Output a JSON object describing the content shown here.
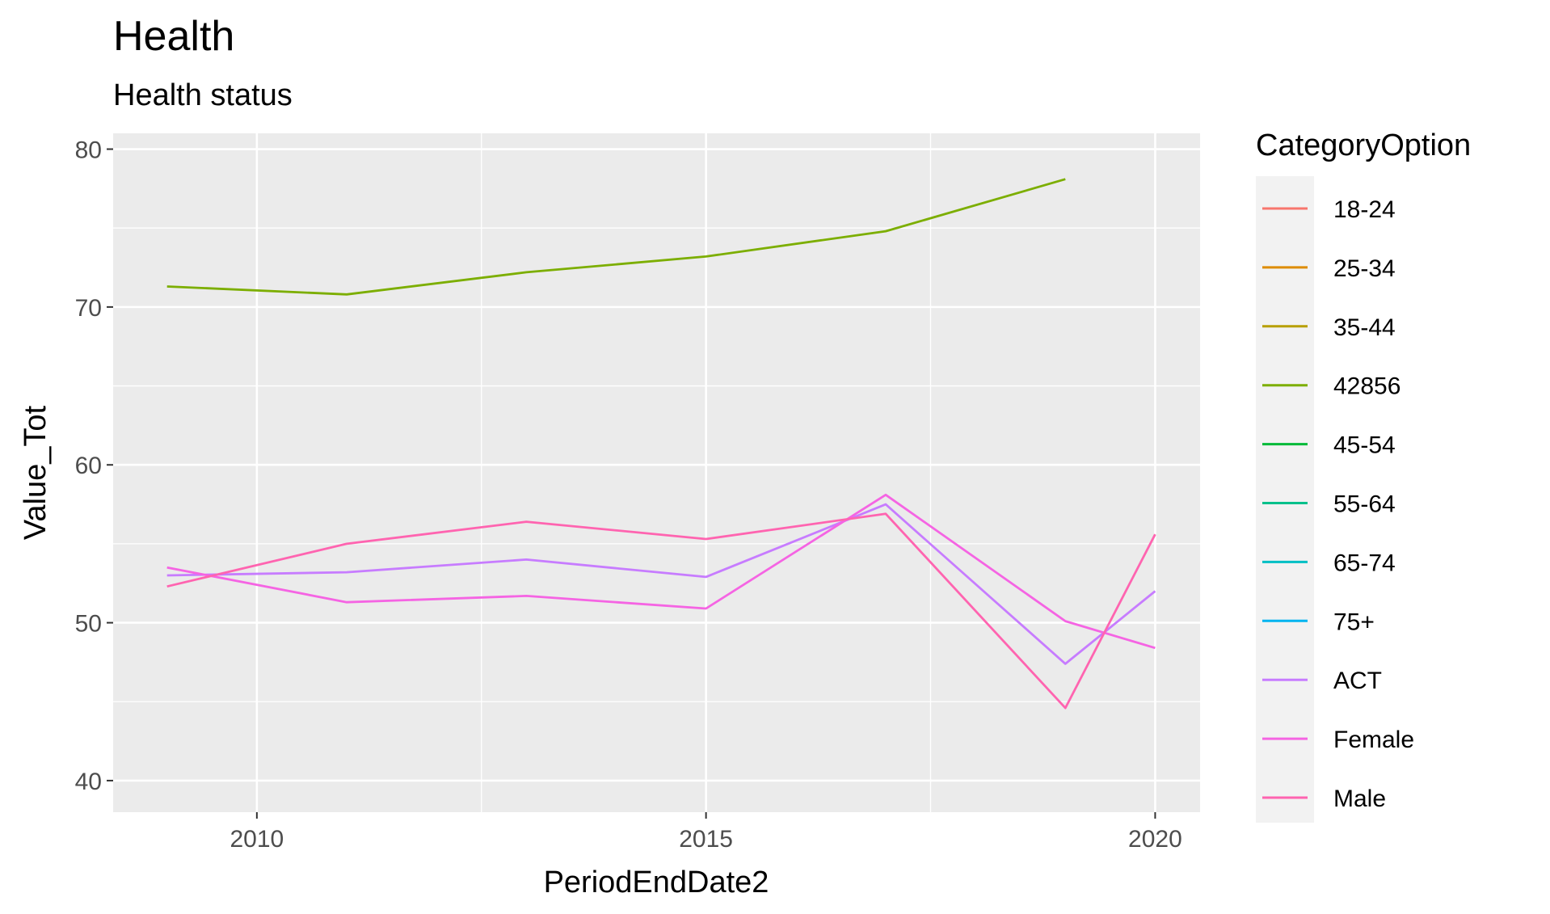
{
  "chart_data": {
    "type": "line",
    "title": "Health",
    "subtitle": "Health status",
    "xlabel": "PeriodEndDate2",
    "ylabel": "Value_Tot",
    "xlim": [
      2008.4,
      2020.5
    ],
    "ylim": [
      38.0,
      81.0
    ],
    "x_ticks": [
      2010,
      2015,
      2020
    ],
    "x_tick_labels": [
      "2010",
      "2015",
      "2020"
    ],
    "y_ticks": [
      40,
      50,
      60,
      70,
      80
    ],
    "y_tick_labels": [
      "40",
      "50",
      "60",
      "70",
      "80"
    ],
    "grid": true,
    "legend": {
      "title": "CategoryOption",
      "position": "right",
      "entries": [
        {
          "label": "18-24",
          "color": "#F8766D"
        },
        {
          "label": "25-34",
          "color": "#DE8C00"
        },
        {
          "label": "35-44",
          "color": "#B79F00"
        },
        {
          "label": "42856",
          "color": "#7CAE00"
        },
        {
          "label": "45-54",
          "color": "#00BA38"
        },
        {
          "label": "55-64",
          "color": "#00C08B"
        },
        {
          "label": "65-74",
          "color": "#00BFC4"
        },
        {
          "label": "75+",
          "color": "#00B4F0"
        },
        {
          "label": "ACT",
          "color": "#C77CFF"
        },
        {
          "label": "Female",
          "color": "#F564E3"
        },
        {
          "label": "Male",
          "color": "#FF64B0"
        }
      ]
    },
    "series": [
      {
        "name": "42856",
        "color": "#7CAE00",
        "x": [
          2009,
          2011,
          2013,
          2015,
          2017,
          2019
        ],
        "y": [
          71.3,
          70.8,
          72.2,
          73.2,
          74.8,
          78.1
        ]
      },
      {
        "name": "ACT",
        "color": "#C77CFF",
        "x": [
          2009,
          2011,
          2013,
          2015,
          2017,
          2019,
          2020
        ],
        "y": [
          53.0,
          53.2,
          54.0,
          52.9,
          57.5,
          47.4,
          52.0
        ]
      },
      {
        "name": "Female",
        "color": "#F564E3",
        "x": [
          2009,
          2011,
          2013,
          2015,
          2017,
          2019,
          2020
        ],
        "y": [
          53.5,
          51.3,
          51.7,
          50.9,
          58.1,
          50.1,
          48.4
        ]
      },
      {
        "name": "Male",
        "color": "#FF64B0",
        "x": [
          2009,
          2011,
          2013,
          2015,
          2017,
          2019,
          2020
        ],
        "y": [
          52.3,
          55.0,
          56.4,
          55.3,
          56.9,
          44.6,
          55.6
        ]
      }
    ]
  }
}
